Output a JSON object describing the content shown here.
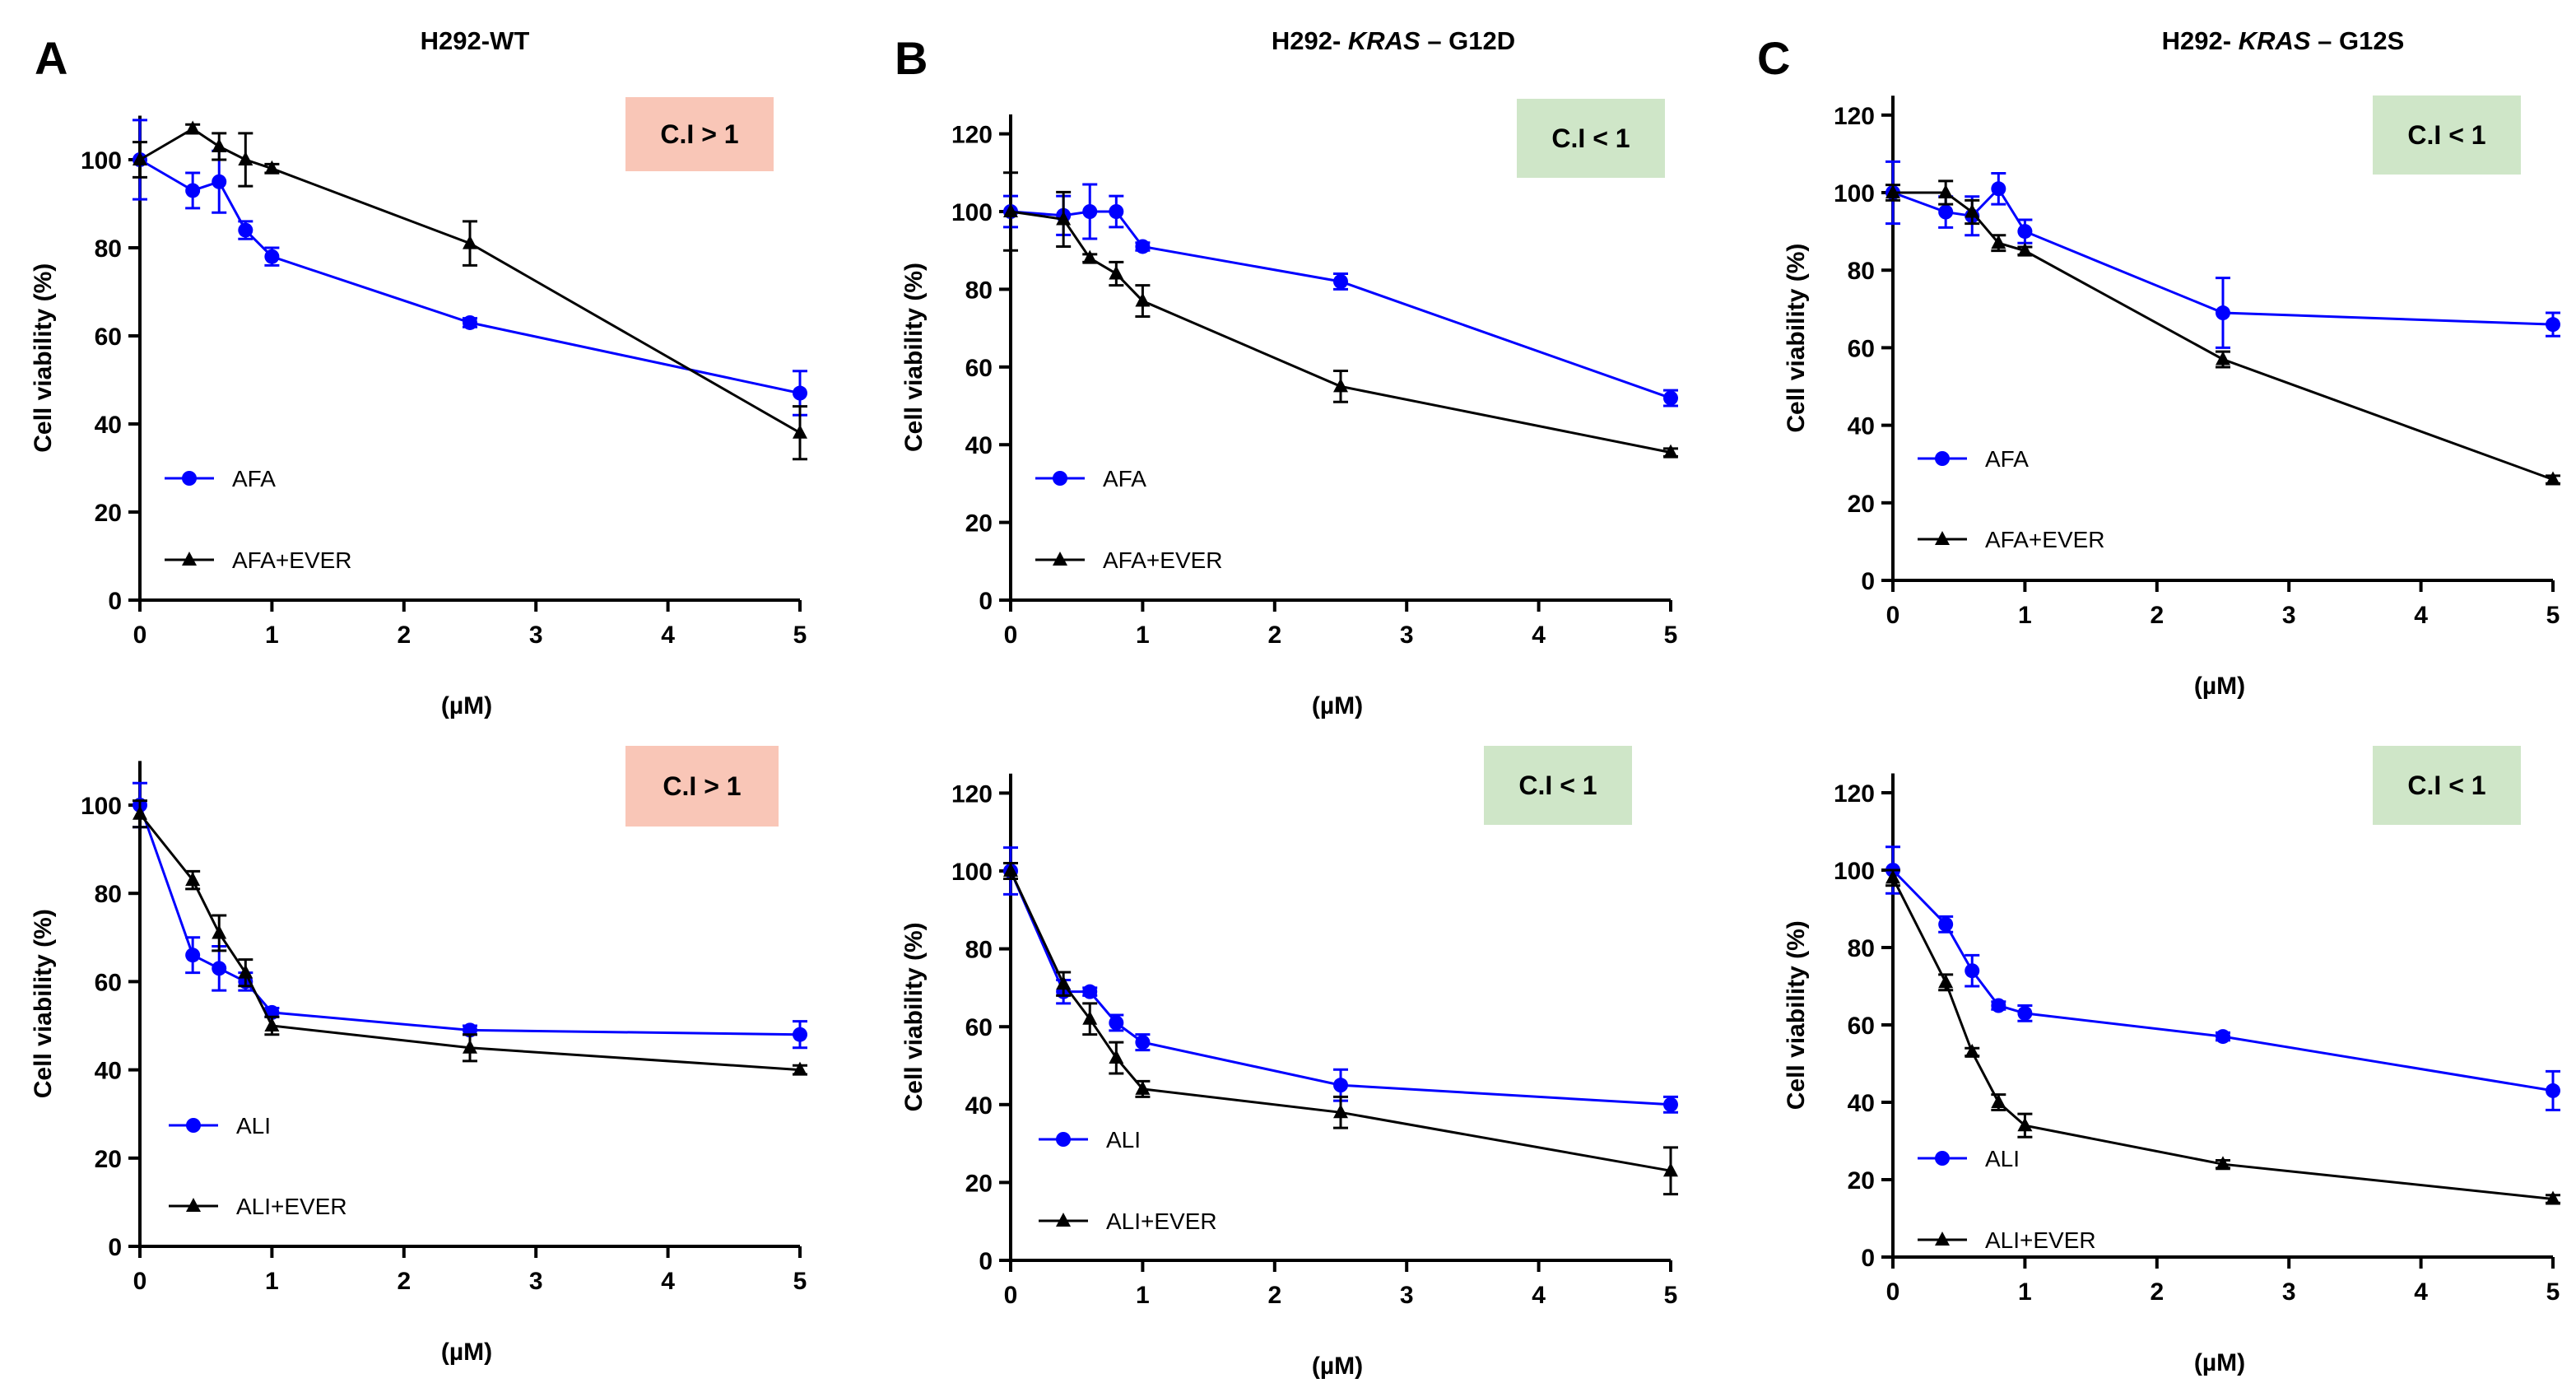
{
  "panel_letters": [
    "A",
    "B",
    "C"
  ],
  "xlabel": "(µM)",
  "ylabel": "Cell viability (%)",
  "colors": {
    "single": "#0000ff",
    "combo": "#000000",
    "ci_greater": "#f9c6b7",
    "ci_less": "#cfe6c8"
  },
  "chart_data": [
    {
      "type": "line",
      "column": 0,
      "row": 0,
      "title": "H292-WT",
      "title_prefix": "",
      "title_italic": "",
      "title_suffix": "",
      "xlabel": "(µM)",
      "ylabel": "Cell viability (%)",
      "xlim": [
        0,
        5
      ],
      "ylim": [
        0,
        110
      ],
      "yticks": [
        0,
        20,
        40,
        60,
        80,
        100
      ],
      "xticks": [
        0,
        1,
        2,
        3,
        4,
        5
      ],
      "ci_label": "C.I > 1",
      "ci_type": "greater",
      "series": [
        {
          "name": "AFA",
          "color": "#0000ff",
          "marker": "circle",
          "x": [
            0,
            0.4,
            0.6,
            0.8,
            1,
            2.5,
            5
          ],
          "y": [
            100,
            93,
            95,
            84,
            78,
            63,
            47
          ],
          "err": [
            9,
            4,
            7,
            2,
            2,
            1,
            5
          ]
        },
        {
          "name": "AFA+EVER",
          "color": "#000000",
          "marker": "triangle",
          "x": [
            0,
            0.4,
            0.6,
            0.8,
            1,
            2.5,
            5
          ],
          "y": [
            100,
            107,
            103,
            100,
            98,
            81,
            38
          ],
          "err": [
            4,
            1,
            3,
            6,
            1,
            5,
            6
          ]
        }
      ]
    },
    {
      "type": "line",
      "column": 1,
      "row": 0,
      "title": "H292- KRAS – G12D",
      "title_prefix": "H292- ",
      "title_italic": "KRAS",
      "title_suffix": " – G12D",
      "xlabel": "(µM)",
      "ylabel": "Cell viability (%)",
      "xlim": [
        0,
        5
      ],
      "ylim": [
        0,
        125
      ],
      "yticks": [
        0,
        20,
        40,
        60,
        80,
        100,
        120
      ],
      "xticks": [
        0,
        1,
        2,
        3,
        4,
        5
      ],
      "ci_label": "C.I < 1",
      "ci_type": "less",
      "series": [
        {
          "name": "AFA",
          "color": "#0000ff",
          "marker": "circle",
          "x": [
            0,
            0.4,
            0.6,
            0.8,
            1,
            2.5,
            5
          ],
          "y": [
            100,
            99,
            100,
            100,
            91,
            82,
            52
          ],
          "err": [
            4,
            5,
            7,
            4,
            1,
            2,
            2
          ]
        },
        {
          "name": "AFA+EVER",
          "color": "#000000",
          "marker": "triangle",
          "x": [
            0,
            0.4,
            0.6,
            0.8,
            1,
            2.5,
            5
          ],
          "y": [
            100,
            98,
            88,
            84,
            77,
            55,
            38
          ],
          "err": [
            10,
            7,
            1,
            3,
            4,
            4,
            1
          ]
        }
      ]
    },
    {
      "type": "line",
      "column": 2,
      "row": 0,
      "title": "H292- KRAS – G12S",
      "title_prefix": "H292- ",
      "title_italic": "KRAS",
      "title_suffix": " – G12S",
      "xlabel": "(µM)",
      "ylabel": "Cell viability (%)",
      "xlim": [
        0,
        5
      ],
      "ylim": [
        0,
        125
      ],
      "yticks": [
        0,
        20,
        40,
        60,
        80,
        100,
        120
      ],
      "xticks": [
        0,
        1,
        2,
        3,
        4,
        5
      ],
      "ci_label": "C.I < 1",
      "ci_type": "less",
      "series": [
        {
          "name": "AFA",
          "color": "#0000ff",
          "marker": "circle",
          "x": [
            0,
            0.4,
            0.6,
            0.8,
            1,
            2.5,
            5
          ],
          "y": [
            100,
            95,
            94,
            101,
            90,
            69,
            66
          ],
          "err": [
            8,
            4,
            5,
            4,
            3,
            9,
            3
          ]
        },
        {
          "name": "AFA+EVER",
          "color": "#000000",
          "marker": "triangle",
          "x": [
            0,
            0.4,
            0.6,
            0.8,
            1,
            2.5,
            5
          ],
          "y": [
            100,
            100,
            95,
            87,
            85,
            57,
            26
          ],
          "err": [
            2,
            3,
            3,
            2,
            1,
            2,
            1
          ]
        }
      ]
    },
    {
      "type": "line",
      "column": 0,
      "row": 1,
      "title": "",
      "title_prefix": "",
      "title_italic": "",
      "title_suffix": "",
      "xlabel": "(µM)",
      "ylabel": "Cell viability (%)",
      "xlim": [
        0,
        5
      ],
      "ylim": [
        0,
        110
      ],
      "yticks": [
        0,
        20,
        40,
        60,
        80,
        100
      ],
      "xticks": [
        0,
        1,
        2,
        3,
        4,
        5
      ],
      "ci_label": "C.I > 1",
      "ci_type": "greater",
      "series": [
        {
          "name": "ALI",
          "color": "#0000ff",
          "marker": "circle",
          "x": [
            0,
            0.4,
            0.6,
            0.8,
            1,
            2.5,
            5
          ],
          "y": [
            100,
            66,
            63,
            60,
            53,
            49,
            48
          ],
          "err": [
            5,
            4,
            5,
            2,
            1,
            1,
            3
          ]
        },
        {
          "name": "ALI+EVER",
          "color": "#000000",
          "marker": "triangle",
          "x": [
            0,
            0.4,
            0.6,
            0.8,
            1,
            2.5,
            5
          ],
          "y": [
            98,
            83,
            71,
            62,
            50,
            45,
            40
          ],
          "err": [
            3,
            2,
            4,
            3,
            2,
            3,
            1
          ]
        }
      ]
    },
    {
      "type": "line",
      "column": 1,
      "row": 1,
      "title": "",
      "title_prefix": "",
      "title_italic": "",
      "title_suffix": "",
      "xlabel": "(µM)",
      "ylabel": "Cell viability (%)",
      "xlim": [
        0,
        5
      ],
      "ylim": [
        0,
        125
      ],
      "yticks": [
        0,
        20,
        40,
        60,
        80,
        100,
        120
      ],
      "xticks": [
        0,
        1,
        2,
        3,
        4,
        5
      ],
      "ci_label": "C.I < 1",
      "ci_type": "less",
      "series": [
        {
          "name": "ALI",
          "color": "#0000ff",
          "marker": "circle",
          "x": [
            0,
            0.4,
            0.6,
            0.8,
            1,
            2.5,
            5
          ],
          "y": [
            100,
            69,
            69,
            61,
            56,
            45,
            40
          ],
          "err": [
            6,
            3,
            1,
            2,
            2,
            4,
            2
          ]
        },
        {
          "name": "ALI+EVER",
          "color": "#000000",
          "marker": "triangle",
          "x": [
            0,
            0.4,
            0.6,
            0.8,
            1,
            2.5,
            5
          ],
          "y": [
            100,
            71,
            62,
            52,
            44,
            38,
            23
          ],
          "err": [
            2,
            3,
            4,
            4,
            2,
            4,
            6
          ]
        }
      ]
    },
    {
      "type": "line",
      "column": 2,
      "row": 1,
      "title": "",
      "title_prefix": "",
      "title_italic": "",
      "title_suffix": "",
      "xlabel": "(µM)",
      "ylabel": "Cell viability (%)",
      "xlim": [
        0,
        5
      ],
      "ylim": [
        0,
        125
      ],
      "yticks": [
        0,
        20,
        40,
        60,
        80,
        100,
        120
      ],
      "xticks": [
        0,
        1,
        2,
        3,
        4,
        5
      ],
      "ci_label": "C.I < 1",
      "ci_type": "less",
      "series": [
        {
          "name": "ALI",
          "color": "#0000ff",
          "marker": "circle",
          "x": [
            0,
            0.4,
            0.6,
            0.8,
            1,
            2.5,
            5
          ],
          "y": [
            100,
            86,
            74,
            65,
            63,
            57,
            43
          ],
          "err": [
            6,
            2,
            4,
            1,
            2,
            1,
            5
          ]
        },
        {
          "name": "ALI+EVER",
          "color": "#000000",
          "marker": "triangle",
          "x": [
            0,
            0.4,
            0.6,
            0.8,
            1,
            2.5,
            5
          ],
          "y": [
            98,
            71,
            53,
            40,
            34,
            24,
            15
          ],
          "err": [
            2,
            2,
            1,
            2,
            3,
            1,
            1
          ]
        }
      ]
    }
  ]
}
